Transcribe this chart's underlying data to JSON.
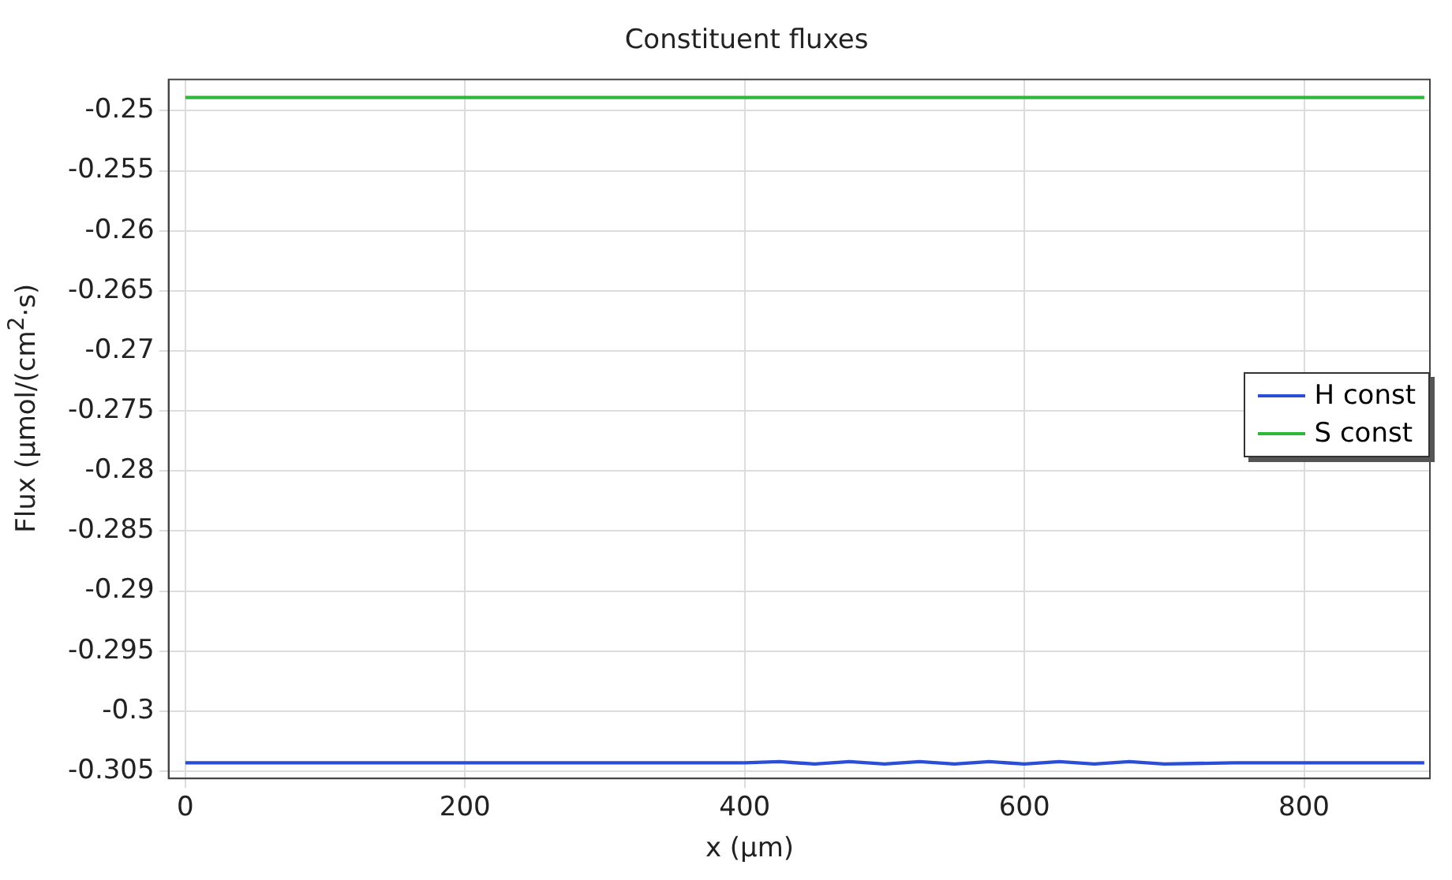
{
  "chart_data": {
    "type": "line",
    "title": "Constituent fluxes",
    "xlabel": "x (µm)",
    "ylabel": "Flux (µmol/(cm$^{2}$·s)",
    "x": [
      0,
      200,
      400,
      425,
      450,
      475,
      500,
      525,
      550,
      575,
      600,
      625,
      650,
      675,
      700,
      750,
      800,
      886
    ],
    "series": [
      {
        "name": "H const",
        "color": "#2a4fd6",
        "values": [
          -0.3043,
          -0.3043,
          -0.3043,
          -0.3042,
          -0.3044,
          -0.3042,
          -0.3044,
          -0.3042,
          -0.3044,
          -0.3042,
          -0.3044,
          -0.3042,
          -0.3044,
          -0.3042,
          -0.3044,
          -0.3043,
          -0.3043,
          -0.3043
        ]
      },
      {
        "name": "S const",
        "color": "#2eb83a",
        "values": [
          -0.2489,
          -0.2489,
          -0.2489,
          -0.2489,
          -0.2489,
          -0.2489,
          -0.2489,
          -0.2489,
          -0.2489,
          -0.2489,
          -0.2489,
          -0.2489,
          -0.2489,
          -0.2489,
          -0.2489,
          -0.2489,
          -0.2489,
          -0.2489
        ]
      }
    ],
    "xlim": [
      -12,
      890
    ],
    "xticks": [
      0,
      200,
      400,
      600,
      800
    ],
    "ylim": [
      -0.3056,
      -0.2474
    ],
    "yticks": [
      -0.25,
      -0.255,
      -0.26,
      -0.265,
      -0.27,
      -0.275,
      -0.28,
      -0.285,
      -0.29,
      -0.295,
      -0.3,
      -0.305
    ],
    "grid": true,
    "legend": "right",
    "marker": "none",
    "line_style": "solid"
  }
}
